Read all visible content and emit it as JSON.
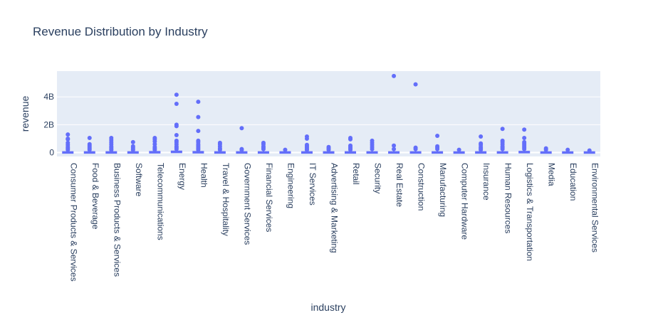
{
  "chart_data": {
    "type": "box",
    "title": "Revenue Distribution by Industry",
    "xlabel": "industry",
    "ylabel": "revenue",
    "y_ticks": [
      {
        "value": 0,
        "label": "0"
      },
      {
        "value": 2000000000,
        "label": "2B"
      },
      {
        "value": 4000000000,
        "label": "4B"
      }
    ],
    "ylim": [
      -280000000,
      5850000000
    ],
    "grid": true,
    "marker_color": "#636efa",
    "plot_bg": "#e5ecf6",
    "categories": [
      "Consumer Products & Services",
      "Food & Beverage",
      "Business Products & Services",
      "Software",
      "Telecommunications",
      "Energy",
      "Health",
      "Travel & Hospitality",
      "Government Services",
      "Financial Services",
      "Engineering",
      "IT Services",
      "Advertising & Marketing",
      "Retail",
      "Security",
      "Real Estate",
      "Construction",
      "Manufacturing",
      "Computer Hardware",
      "Insurance",
      "Human Resources",
      "Logistics & Transportation",
      "Media",
      "Education",
      "Environmental Services"
    ],
    "series": [
      {
        "q1": 5000000,
        "median": 15000000,
        "q3": 45000000,
        "whisker_low": 2000000,
        "whisker_high": 110000000,
        "outliers": [
          1300000000,
          1000000000,
          950000000,
          700000000,
          550000000,
          400000000,
          300000000,
          200000000
        ]
      },
      {
        "q1": 5000000,
        "median": 15000000,
        "q3": 45000000,
        "whisker_low": 2000000,
        "whisker_high": 110000000,
        "outliers": [
          1050000000,
          600000000,
          500000000,
          400000000,
          300000000,
          200000000
        ]
      },
      {
        "q1": 5000000,
        "median": 15000000,
        "q3": 45000000,
        "whisker_low": 2000000,
        "whisker_high": 110000000,
        "outliers": [
          1050000000,
          900000000,
          750000000,
          600000000,
          450000000,
          350000000,
          250000000,
          180000000
        ]
      },
      {
        "q1": 5000000,
        "median": 15000000,
        "q3": 45000000,
        "whisker_low": 2000000,
        "whisker_high": 110000000,
        "outliers": [
          750000000,
          450000000,
          350000000,
          250000000,
          180000000
        ]
      },
      {
        "q1": 5000000,
        "median": 20000000,
        "q3": 60000000,
        "whisker_low": 2000000,
        "whisker_high": 140000000,
        "outliers": [
          1050000000,
          950000000,
          800000000,
          600000000,
          400000000,
          300000000,
          200000000
        ]
      },
      {
        "q1": 10000000,
        "median": 30000000,
        "q3": 90000000,
        "whisker_low": 2000000,
        "whisker_high": 200000000,
        "outliers": [
          4150000000,
          3500000000,
          2000000000,
          1900000000,
          1250000000,
          850000000,
          750000000,
          600000000,
          450000000,
          350000000,
          250000000
        ]
      },
      {
        "q1": 5000000,
        "median": 20000000,
        "q3": 60000000,
        "whisker_low": 2000000,
        "whisker_high": 140000000,
        "outliers": [
          3650000000,
          2550000000,
          1550000000,
          850000000,
          750000000,
          600000000,
          500000000,
          400000000,
          300000000,
          200000000
        ]
      },
      {
        "q1": 5000000,
        "median": 15000000,
        "q3": 45000000,
        "whisker_low": 2000000,
        "whisker_high": 110000000,
        "outliers": [
          700000000,
          600000000,
          450000000,
          300000000,
          200000000
        ]
      },
      {
        "q1": 5000000,
        "median": 15000000,
        "q3": 45000000,
        "whisker_low": 2000000,
        "whisker_high": 110000000,
        "outliers": [
          1750000000,
          250000000,
          180000000
        ]
      },
      {
        "q1": 5000000,
        "median": 15000000,
        "q3": 45000000,
        "whisker_low": 2000000,
        "whisker_high": 110000000,
        "outliers": [
          700000000,
          600000000,
          450000000,
          350000000,
          250000000
        ]
      },
      {
        "q1": 5000000,
        "median": 15000000,
        "q3": 45000000,
        "whisker_low": 2000000,
        "whisker_high": 100000000,
        "outliers": [
          200000000
        ]
      },
      {
        "q1": 5000000,
        "median": 15000000,
        "q3": 45000000,
        "whisker_low": 2000000,
        "whisker_high": 110000000,
        "outliers": [
          1150000000,
          1000000000,
          550000000,
          450000000,
          350000000,
          250000000,
          180000000
        ]
      },
      {
        "q1": 5000000,
        "median": 15000000,
        "q3": 45000000,
        "whisker_low": 2000000,
        "whisker_high": 110000000,
        "outliers": [
          400000000,
          300000000,
          200000000
        ]
      },
      {
        "q1": 5000000,
        "median": 15000000,
        "q3": 45000000,
        "whisker_low": 2000000,
        "whisker_high": 110000000,
        "outliers": [
          1050000000,
          950000000,
          500000000,
          400000000,
          300000000,
          200000000
        ]
      },
      {
        "q1": 5000000,
        "median": 15000000,
        "q3": 45000000,
        "whisker_low": 2000000,
        "whisker_high": 110000000,
        "outliers": [
          850000000,
          700000000,
          550000000,
          400000000,
          250000000
        ]
      },
      {
        "q1": 5000000,
        "median": 15000000,
        "q3": 45000000,
        "whisker_low": 2000000,
        "whisker_high": 110000000,
        "outliers": [
          5500000000,
          500000000,
          250000000
        ]
      },
      {
        "q1": 5000000,
        "median": 15000000,
        "q3": 45000000,
        "whisker_low": 2000000,
        "whisker_high": 110000000,
        "outliers": [
          4900000000,
          350000000,
          250000000
        ]
      },
      {
        "q1": 5000000,
        "median": 15000000,
        "q3": 45000000,
        "whisker_low": 2000000,
        "whisker_high": 110000000,
        "outliers": [
          1200000000,
          450000000,
          350000000,
          250000000
        ]
      },
      {
        "q1": 5000000,
        "median": 15000000,
        "q3": 40000000,
        "whisker_low": 2000000,
        "whisker_high": 100000000,
        "outliers": [
          200000000
        ]
      },
      {
        "q1": 5000000,
        "median": 15000000,
        "q3": 45000000,
        "whisker_low": 2000000,
        "whisker_high": 110000000,
        "outliers": [
          1150000000,
          650000000,
          550000000,
          400000000,
          300000000,
          200000000
        ]
      },
      {
        "q1": 5000000,
        "median": 15000000,
        "q3": 45000000,
        "whisker_low": 2000000,
        "whisker_high": 120000000,
        "outliers": [
          1700000000,
          850000000,
          750000000,
          600000000,
          450000000,
          350000000,
          250000000
        ]
      },
      {
        "q1": 10000000,
        "median": 25000000,
        "q3": 70000000,
        "whisker_low": 2000000,
        "whisker_high": 160000000,
        "outliers": [
          1650000000,
          1050000000,
          750000000,
          650000000,
          550000000,
          450000000,
          350000000,
          250000000
        ]
      },
      {
        "q1": 5000000,
        "median": 15000000,
        "q3": 40000000,
        "whisker_low": 2000000,
        "whisker_high": 100000000,
        "outliers": [
          300000000,
          200000000
        ]
      },
      {
        "q1": 5000000,
        "median": 15000000,
        "q3": 40000000,
        "whisker_low": 2000000,
        "whisker_high": 100000000,
        "outliers": [
          200000000
        ]
      },
      {
        "q1": 5000000,
        "median": 15000000,
        "q3": 40000000,
        "whisker_low": 2000000,
        "whisker_high": 90000000,
        "outliers": [
          150000000
        ]
      }
    ]
  }
}
